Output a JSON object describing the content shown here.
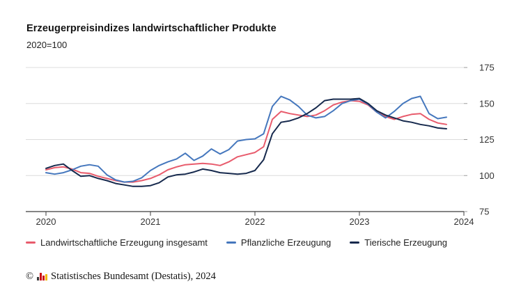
{
  "header": {
    "title": "Erzeugerpreisindizes landwirtschaftlicher Produkte",
    "subtitle": "2020=100"
  },
  "chart_data": {
    "type": "line",
    "title": "Erzeugerpreisindizes landwirtschaftlicher Produkte",
    "subtitle": "2020=100",
    "x_tick_labels": [
      "2020",
      "2021",
      "2022",
      "2023",
      "2024"
    ],
    "y_ticks": [
      75,
      100,
      125,
      150,
      175
    ],
    "ylim": [
      75,
      175
    ],
    "x_frequency": "monthly",
    "x_range": "2020-01 to 2023-11",
    "grid": "horizontal",
    "legend_position": "bottom",
    "colors": {
      "grid": "#dcdcdc",
      "axis": "#3c3c3c",
      "tick": "#9a9a9a",
      "text": "#333333"
    },
    "series": [
      {
        "id": "insgesamt",
        "name": "Landwirtschaftliche Erzeugung insgesamt",
        "color": "#e85b6c",
        "values": [
          104,
          105.5,
          106,
          104.5,
          102,
          101.5,
          99.5,
          98,
          96.5,
          95.5,
          95.5,
          96.5,
          98,
          100.5,
          104,
          106,
          107.5,
          108,
          108.5,
          108,
          107,
          109.5,
          113,
          114.5,
          116,
          120,
          139,
          144.5,
          143,
          142,
          141,
          142,
          145,
          149,
          151,
          152,
          151.5,
          149,
          144,
          141,
          139,
          141,
          142.5,
          143,
          139,
          136.5,
          135.5
        ]
      },
      {
        "id": "pflanzliche",
        "name": "Pflanzliche Erzeugung",
        "color": "#4577bd",
        "values": [
          102,
          101,
          102,
          104,
          106.5,
          107.5,
          106.5,
          100.5,
          97,
          95.5,
          96,
          98.5,
          103.5,
          107,
          109.5,
          111.5,
          115.5,
          110.5,
          113.5,
          118.5,
          115,
          118,
          124,
          125,
          125.5,
          129,
          148,
          155,
          152.5,
          148,
          142,
          140,
          141,
          145,
          150,
          152,
          153,
          149.5,
          144,
          140,
          144.5,
          150,
          153.5,
          155,
          143,
          139.5,
          140.5
        ]
      },
      {
        "id": "tierische",
        "name": "Tierische Erzeugung",
        "color": "#16294d",
        "values": [
          105,
          107,
          108,
          103.5,
          99.5,
          100,
          98,
          96.5,
          94.5,
          93.5,
          92.5,
          92.5,
          93,
          95,
          99,
          100.5,
          101,
          102.5,
          104.5,
          103.5,
          102,
          101.5,
          101,
          101.5,
          103.5,
          111,
          129,
          137,
          138,
          140,
          143,
          147,
          152,
          153,
          153,
          153,
          153.5,
          150,
          145,
          142,
          140,
          138,
          137,
          135.5,
          134.5,
          133,
          132.5
        ]
      }
    ]
  },
  "footer": {
    "copyright_symbol": "©",
    "source": "Statistisches Bundesamt (Destatis), 2024",
    "logo_bar_colors": [
      "#3a3a3a",
      "#cc0a12",
      "#cc0a12",
      "#f2b700"
    ]
  }
}
